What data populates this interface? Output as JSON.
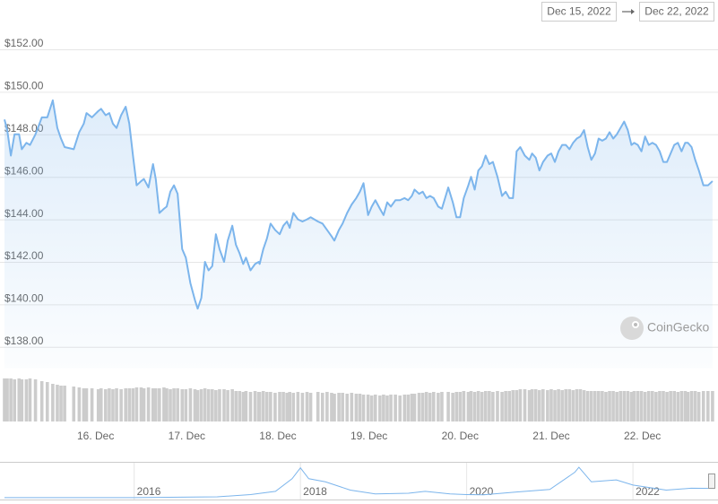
{
  "chart_data": {
    "type": "line",
    "date_range": {
      "start": "Dec 15, 2022",
      "end": "Dec 22, 2022"
    },
    "watermark": "CoinGecko",
    "grid": true,
    "xlim": [
      15,
      22.83
    ],
    "xticks": [
      {
        "value": 16,
        "label": "16. Dec"
      },
      {
        "value": 17,
        "label": "17. Dec"
      },
      {
        "value": 18,
        "label": "18. Dec"
      },
      {
        "value": 19,
        "label": "19. Dec"
      },
      {
        "value": 20,
        "label": "20. Dec"
      },
      {
        "value": 21,
        "label": "21. Dec"
      },
      {
        "value": 22,
        "label": "22. Dec"
      }
    ],
    "ylim": [
      137,
      153
    ],
    "yticks": [
      {
        "value": 138,
        "label": "$138.00"
      },
      {
        "value": 140,
        "label": "$140.00"
      },
      {
        "value": 142,
        "label": "$142.00"
      },
      {
        "value": 144,
        "label": "$144.00"
      },
      {
        "value": 146,
        "label": "$146.00"
      },
      {
        "value": 148,
        "label": "$148.00"
      },
      {
        "value": 150,
        "label": "$150.00"
      },
      {
        "value": 152,
        "label": "$152.00"
      }
    ],
    "y2lim": [
      0,
      50
    ],
    "x": [
      15.0,
      15.03,
      15.07,
      15.11,
      15.16,
      15.19,
      15.24,
      15.28,
      15.34,
      15.41,
      15.47,
      15.53,
      15.58,
      15.62,
      15.66,
      15.76,
      15.82,
      15.87,
      15.9,
      15.96,
      16.03,
      16.06,
      16.11,
      16.15,
      16.19,
      16.23,
      16.28,
      16.33,
      16.37,
      16.41,
      16.45,
      16.5,
      16.53,
      16.58,
      16.63,
      16.66,
      16.7,
      16.75,
      16.78,
      16.82,
      16.86,
      16.9,
      16.95,
      16.99,
      17.04,
      17.09,
      17.12,
      17.16,
      17.2,
      17.24,
      17.28,
      17.32,
      17.36,
      17.41,
      17.45,
      17.5,
      17.54,
      17.58,
      17.62,
      17.65,
      17.7,
      17.75,
      17.79,
      17.8,
      17.84,
      17.88,
      17.92,
      17.97,
      18.02,
      18.06,
      18.1,
      18.13,
      18.17,
      18.22,
      18.27,
      18.32,
      18.36,
      18.44,
      18.49,
      18.54,
      18.59,
      18.62,
      18.67,
      18.71,
      18.76,
      18.81,
      18.86,
      18.9,
      18.94,
      18.99,
      19.03,
      19.07,
      19.12,
      19.16,
      19.2,
      19.24,
      19.29,
      19.34,
      19.39,
      19.43,
      19.47,
      19.5,
      19.55,
      19.59,
      19.63,
      19.67,
      19.71,
      19.76,
      19.8,
      19.87,
      19.92,
      19.96,
      20.0,
      20.04,
      20.09,
      20.12,
      20.16,
      20.2,
      20.24,
      20.28,
      20.32,
      20.36,
      20.41,
      20.46,
      20.5,
      20.54,
      20.58,
      20.62,
      20.66,
      20.71,
      20.76,
      20.79,
      20.83,
      20.87,
      20.91,
      20.96,
      21.0,
      21.04,
      21.08,
      21.12,
      21.16,
      21.2,
      21.24,
      21.28,
      21.32,
      21.36,
      21.4,
      21.44,
      21.48,
      21.52,
      21.56,
      21.6,
      21.64,
      21.68,
      21.72,
      21.76,
      21.8,
      21.84,
      21.88,
      21.91,
      21.95,
      21.99,
      22.03,
      22.07,
      22.11,
      22.15,
      22.19,
      22.23,
      22.27,
      22.31,
      22.35,
      22.39,
      22.43,
      22.47,
      22.5,
      22.54,
      22.58,
      22.62,
      22.67,
      22.72,
      22.77
    ],
    "series": [
      {
        "color": "#7cb5ec",
        "values": [
          148.7,
          148.2,
          147.0,
          148.0,
          148.0,
          147.3,
          147.6,
          147.5,
          148.0,
          148.8,
          148.8,
          149.6,
          148.3,
          147.8,
          147.4,
          147.3,
          148.1,
          148.5,
          149.0,
          148.8,
          149.1,
          149.2,
          148.9,
          149.0,
          148.5,
          148.3,
          148.9,
          149.3,
          148.5,
          147.0,
          145.6,
          145.8,
          145.9,
          145.5,
          146.6,
          145.9,
          144.3,
          144.5,
          144.6,
          145.3,
          145.6,
          145.2,
          142.6,
          142.2,
          141.0,
          140.2,
          139.8,
          140.3,
          142.0,
          141.6,
          141.8,
          143.3,
          142.6,
          142.0,
          143.0,
          143.7,
          142.8,
          142.4,
          141.9,
          142.2,
          141.6,
          141.9,
          142.0,
          141.9,
          142.6,
          143.1,
          143.8,
          143.5,
          143.3,
          143.7,
          143.9,
          143.6,
          144.3,
          144.0,
          143.9,
          144.0,
          144.1,
          143.9,
          143.8,
          143.5,
          143.2,
          143.0,
          143.5,
          143.8,
          144.3,
          144.7,
          145.0,
          145.3,
          145.7,
          144.2,
          144.6,
          144.9,
          144.5,
          144.2,
          144.8,
          144.6,
          144.9,
          144.9,
          145.0,
          144.9,
          145.1,
          145.4,
          145.2,
          145.3,
          145.0,
          145.1,
          145.0,
          144.6,
          144.5,
          145.5,
          144.8,
          144.1,
          144.1,
          145.0,
          145.6,
          146.0,
          145.4,
          146.3,
          146.5,
          147.0,
          146.6,
          146.7,
          146.0,
          145.1,
          145.3,
          145.0,
          145.0,
          147.2,
          147.4,
          147.0,
          146.8,
          147.1,
          146.9,
          146.3,
          146.7,
          147.0,
          147.1,
          146.7,
          147.2,
          147.5,
          147.5,
          147.3,
          147.6,
          147.8,
          147.9,
          148.2,
          147.4,
          146.8,
          147.1,
          147.8,
          147.7,
          147.8,
          148.1,
          147.8,
          148.0,
          148.3,
          148.6,
          148.2,
          147.5,
          147.6,
          147.5,
          147.2,
          147.9,
          147.5,
          147.6,
          147.5,
          147.2,
          146.7,
          146.7,
          147.1,
          147.5,
          147.6,
          147.2,
          147.6,
          147.6,
          147.4,
          146.8,
          146.3,
          145.6,
          145.6,
          145.8
        ]
      },
      {
        "type": "bar",
        "axis": "y2",
        "color": "#cccccc",
        "values": [
          48,
          48,
          48,
          47,
          48,
          47,
          47,
          48,
          47,
          45,
          44,
          42,
          41,
          40,
          40,
          39,
          38,
          37,
          37,
          37,
          36,
          37,
          36,
          37,
          36,
          37,
          36,
          37,
          37,
          37,
          38,
          38,
          37,
          38,
          37,
          37,
          37,
          38,
          37,
          36,
          37,
          37,
          36,
          36,
          37,
          36,
          35,
          36,
          37,
          36,
          36,
          35,
          36,
          36,
          35,
          36,
          34,
          34,
          33,
          34,
          33,
          34,
          33,
          33,
          34,
          33,
          33,
          32,
          33,
          33,
          32,
          33,
          32,
          33,
          32,
          33,
          32,
          33,
          32,
          33,
          32,
          31,
          32,
          32,
          31,
          32,
          31,
          31,
          30,
          30,
          29,
          30,
          29,
          30,
          29,
          30,
          30,
          29,
          30,
          30,
          31,
          31,
          32,
          32,
          33,
          32,
          33,
          32,
          33,
          33,
          32,
          33,
          33,
          34,
          33,
          34,
          33,
          34,
          33,
          34,
          34,
          33,
          34,
          33,
          34,
          34,
          35,
          35,
          36,
          36,
          35,
          36,
          36,
          35,
          36,
          35,
          36,
          35,
          36,
          35,
          36,
          36,
          35,
          36,
          36,
          35,
          34,
          34,
          34,
          34,
          34,
          33,
          34,
          34,
          33,
          34,
          34,
          34,
          33,
          34,
          34,
          34,
          33,
          34,
          34,
          33,
          34,
          34,
          33,
          34,
          34,
          33,
          34,
          34,
          33,
          34,
          34,
          33,
          34,
          34,
          34
        ]
      }
    ],
    "navigator": {
      "color": "#7cb5ec",
      "xlim": [
        2014.44,
        2022.98
      ],
      "ylim": [
        0,
        480
      ],
      "xticks": [
        2016,
        2018,
        2020,
        2022
      ],
      "x": [
        2014.44,
        2015,
        2016,
        2016.7,
        2017,
        2017.4,
        2017.7,
        2017.9,
        2018.0,
        2018.1,
        2018.3,
        2018.6,
        2018.9,
        2019.3,
        2019.5,
        2019.8,
        2020.0,
        2020.2,
        2020.6,
        2021.0,
        2021.3,
        2021.35,
        2021.5,
        2021.8,
        2022.0,
        2022.4,
        2022.7,
        2022.98
      ],
      "values": [
        2,
        1,
        1,
        10,
        14,
        50,
        100,
        300,
        470,
        300,
        250,
        120,
        60,
        70,
        100,
        60,
        50,
        45,
        90,
        130,
        400,
        480,
        250,
        280,
        200,
        120,
        150,
        146
      ]
    }
  }
}
